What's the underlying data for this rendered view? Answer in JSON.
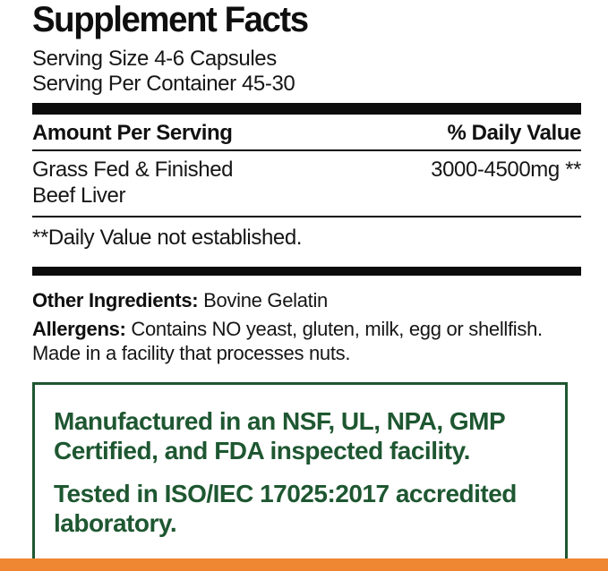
{
  "label": {
    "title": "Supplement Facts",
    "serving_size": "Serving Size 4-6 Capsules",
    "servings_per_container": "Serving Per Container 45-30",
    "columns": {
      "amount_header": "Amount Per Serving",
      "daily_value_header": "% Daily Value"
    },
    "rows": [
      {
        "name_line1": "Grass Fed & Finished",
        "name_line2": "Beef Liver",
        "amount": "3000-4500mg **"
      }
    ],
    "footnote": "**Daily Value not established.",
    "other_ingredients": {
      "label": "Other Ingredients:",
      "value": "Bovine Gelatin"
    },
    "allergens": {
      "label": "Allergens:",
      "value": "Contains NO yeast, gluten, milk, egg or shellfish. Made in a facility that processes nuts."
    },
    "certification_box": {
      "line1": "Manufactured in an NSF, UL, NPA, GMP Certified, and FDA inspected facility.",
      "line2": "Tested in ISO/IEC 17025:2017 accredited laboratory."
    },
    "colors": {
      "green": "#1e5731",
      "orange": "#ef8632",
      "black": "#0c0c0c"
    }
  }
}
